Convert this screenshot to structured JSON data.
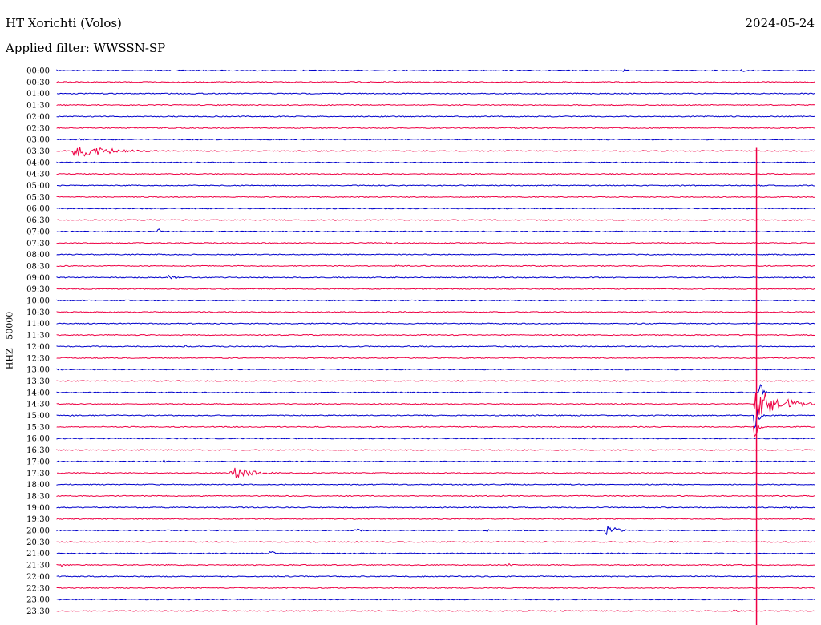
{
  "header": {
    "station": "HT Xorichti (Volos)",
    "date": "2024-05-24",
    "filter": "Applied filter: WWSSN-SP"
  },
  "chart_data": {
    "type": "line",
    "title": "HT Xorichti (Volos)",
    "ylabel": "HHZ - 50000",
    "xlabel": "",
    "grid": false,
    "colors": {
      "even": "#0000cc",
      "odd": "#ee0044"
    },
    "rows": [
      "00:00",
      "00:30",
      "01:00",
      "01:30",
      "02:00",
      "02:30",
      "03:00",
      "03:30",
      "04:00",
      "04:30",
      "05:00",
      "05:30",
      "06:00",
      "06:30",
      "07:00",
      "07:30",
      "08:00",
      "08:30",
      "09:00",
      "09:30",
      "10:00",
      "10:30",
      "11:00",
      "11:30",
      "12:00",
      "12:30",
      "13:00",
      "13:30",
      "14:00",
      "14:30",
      "15:00",
      "15:30",
      "16:00",
      "16:30",
      "17:00",
      "17:30",
      "18:00",
      "18:30",
      "19:00",
      "19:30",
      "20:00",
      "20:30",
      "21:00",
      "21:30",
      "22:00",
      "22:30",
      "23:00",
      "23:30"
    ],
    "events": [
      {
        "row": 0,
        "minute": 22.4,
        "amp": 3,
        "dur": 0.4
      },
      {
        "row": 0,
        "minute": 27.0,
        "amp": 2,
        "dur": 1.2
      },
      {
        "row": 6,
        "minute": 0.8,
        "amp": 2,
        "dur": 1.0
      },
      {
        "row": 7,
        "minute": 0.6,
        "amp": 11,
        "dur": 3.5
      },
      {
        "row": 8,
        "minute": 21.5,
        "amp": 2,
        "dur": 0.5
      },
      {
        "row": 12,
        "minute": 26.3,
        "amp": 4,
        "dur": 0.3
      },
      {
        "row": 14,
        "minute": 4.0,
        "amp": 8,
        "dur": 0.3
      },
      {
        "row": 15,
        "minute": 13.0,
        "amp": 3,
        "dur": 0.8
      },
      {
        "row": 17,
        "minute": 13.3,
        "amp": 4,
        "dur": 0.5
      },
      {
        "row": 18,
        "minute": 4.4,
        "amp": 5,
        "dur": 0.8
      },
      {
        "row": 24,
        "minute": 5.0,
        "amp": 4,
        "dur": 0.4
      },
      {
        "row": 28,
        "minute": 27.8,
        "amp": 28,
        "dur": 0.3
      },
      {
        "row": 29,
        "minute": 27.6,
        "amp": 38,
        "dur": 1.5
      },
      {
        "row": 29,
        "minute": 28.6,
        "amp": 9,
        "dur": 2.5
      },
      {
        "row": 30,
        "minute": 27.6,
        "amp": 30,
        "dur": 0.4
      },
      {
        "row": 30,
        "minute": 0.5,
        "amp": 3,
        "dur": 0.6
      },
      {
        "row": 31,
        "minute": 27.6,
        "amp": 22,
        "dur": 0.4
      },
      {
        "row": 34,
        "minute": 4.2,
        "amp": 5,
        "dur": 0.3
      },
      {
        "row": 35,
        "minute": 6.8,
        "amp": 10,
        "dur": 2.2
      },
      {
        "row": 37,
        "minute": 17.5,
        "amp": 3,
        "dur": 0.5
      },
      {
        "row": 38,
        "minute": 29.0,
        "amp": 3,
        "dur": 0.5
      },
      {
        "row": 40,
        "minute": 11.8,
        "amp": 3,
        "dur": 0.8
      },
      {
        "row": 40,
        "minute": 16.9,
        "amp": 3,
        "dur": 0.6
      },
      {
        "row": 40,
        "minute": 21.7,
        "amp": 10,
        "dur": 1.1
      },
      {
        "row": 42,
        "minute": 8.4,
        "amp": 5,
        "dur": 0.5
      },
      {
        "row": 43,
        "minute": 0.1,
        "amp": 3,
        "dur": 0.5
      },
      {
        "row": 43,
        "minute": 17.8,
        "amp": 3,
        "dur": 0.8
      },
      {
        "row": 47,
        "minute": 26.8,
        "amp": 5,
        "dur": 0.3
      }
    ],
    "spike": {
      "minute": 27.7,
      "from_row": 7,
      "to_row": 47
    }
  }
}
